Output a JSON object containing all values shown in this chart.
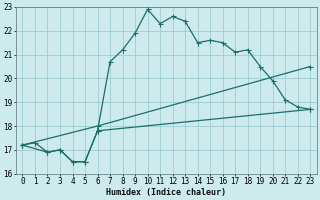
{
  "xlabel": "Humidex (Indice chaleur)",
  "bg_color": "#cdeaed",
  "grid_color": "#9ecdd2",
  "line_color": "#1a6e6a",
  "xlim": [
    -0.5,
    23.5
  ],
  "ylim": [
    16,
    23
  ],
  "xticks": [
    0,
    1,
    2,
    3,
    4,
    5,
    6,
    7,
    8,
    9,
    10,
    11,
    12,
    13,
    14,
    15,
    16,
    17,
    18,
    19,
    20,
    21,
    22,
    23
  ],
  "yticks": [
    16,
    17,
    18,
    19,
    20,
    21,
    22,
    23
  ],
  "line1_x": [
    0,
    1,
    2,
    3,
    4,
    5,
    6,
    7,
    8,
    9,
    10,
    11,
    12,
    13,
    14,
    15,
    16,
    17,
    18,
    19,
    20,
    21,
    22,
    23
  ],
  "line1_y": [
    17.2,
    17.3,
    16.9,
    17.0,
    16.5,
    16.5,
    17.8,
    20.7,
    21.2,
    21.9,
    22.9,
    22.3,
    22.6,
    22.4,
    21.5,
    21.6,
    21.5,
    21.1,
    21.2,
    20.5,
    19.9,
    19.1,
    18.8,
    18.7
  ],
  "line2_x": [
    0,
    2,
    3,
    4,
    5,
    6,
    23
  ],
  "line2_y": [
    17.2,
    16.9,
    17.0,
    16.5,
    16.5,
    17.8,
    18.7
  ],
  "line3_x": [
    0,
    6,
    23
  ],
  "line3_y": [
    17.2,
    18.0,
    20.5
  ]
}
